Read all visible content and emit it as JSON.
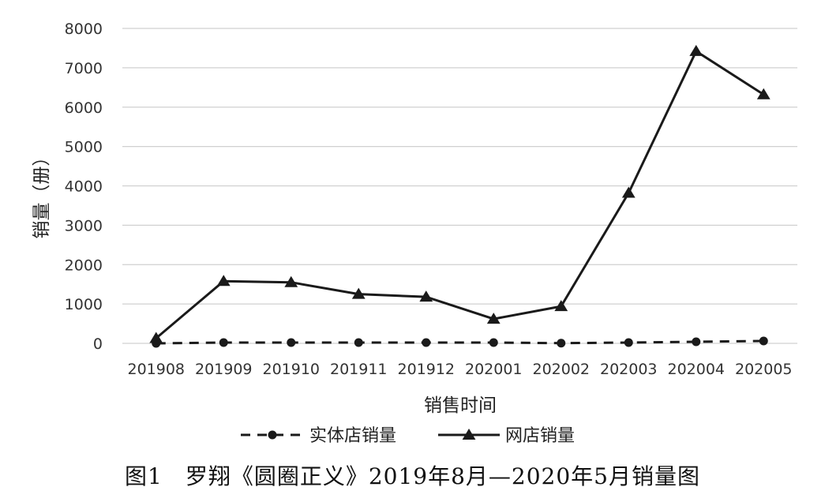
{
  "chart_data": {
    "type": "line",
    "ylabel": "销量（册）",
    "xlabel": "销售时间",
    "ylim": [
      0,
      8000
    ],
    "yticks": [
      0,
      1000,
      2000,
      3000,
      4000,
      5000,
      6000,
      7000,
      8000
    ],
    "categories": [
      "201908",
      "201909",
      "201910",
      "201911",
      "201912",
      "202001",
      "202002",
      "202003",
      "202004",
      "202005"
    ],
    "series": [
      {
        "name": "实体店销量",
        "style": "dashed",
        "marker": "circle",
        "values": [
          0,
          20,
          20,
          20,
          20,
          20,
          5,
          20,
          40,
          60
        ]
      },
      {
        "name": "网店销量",
        "style": "solid",
        "marker": "triangle",
        "values": [
          130,
          1580,
          1550,
          1250,
          1180,
          620,
          940,
          3820,
          7420,
          6320
        ]
      }
    ],
    "grid": true,
    "legend_position": "bottom",
    "line_color": "#1a1a1a",
    "grid_color": "#d0d0d0"
  },
  "caption": "图1　罗翔《圆圈正义》2019年8月—2020年5月销量图"
}
